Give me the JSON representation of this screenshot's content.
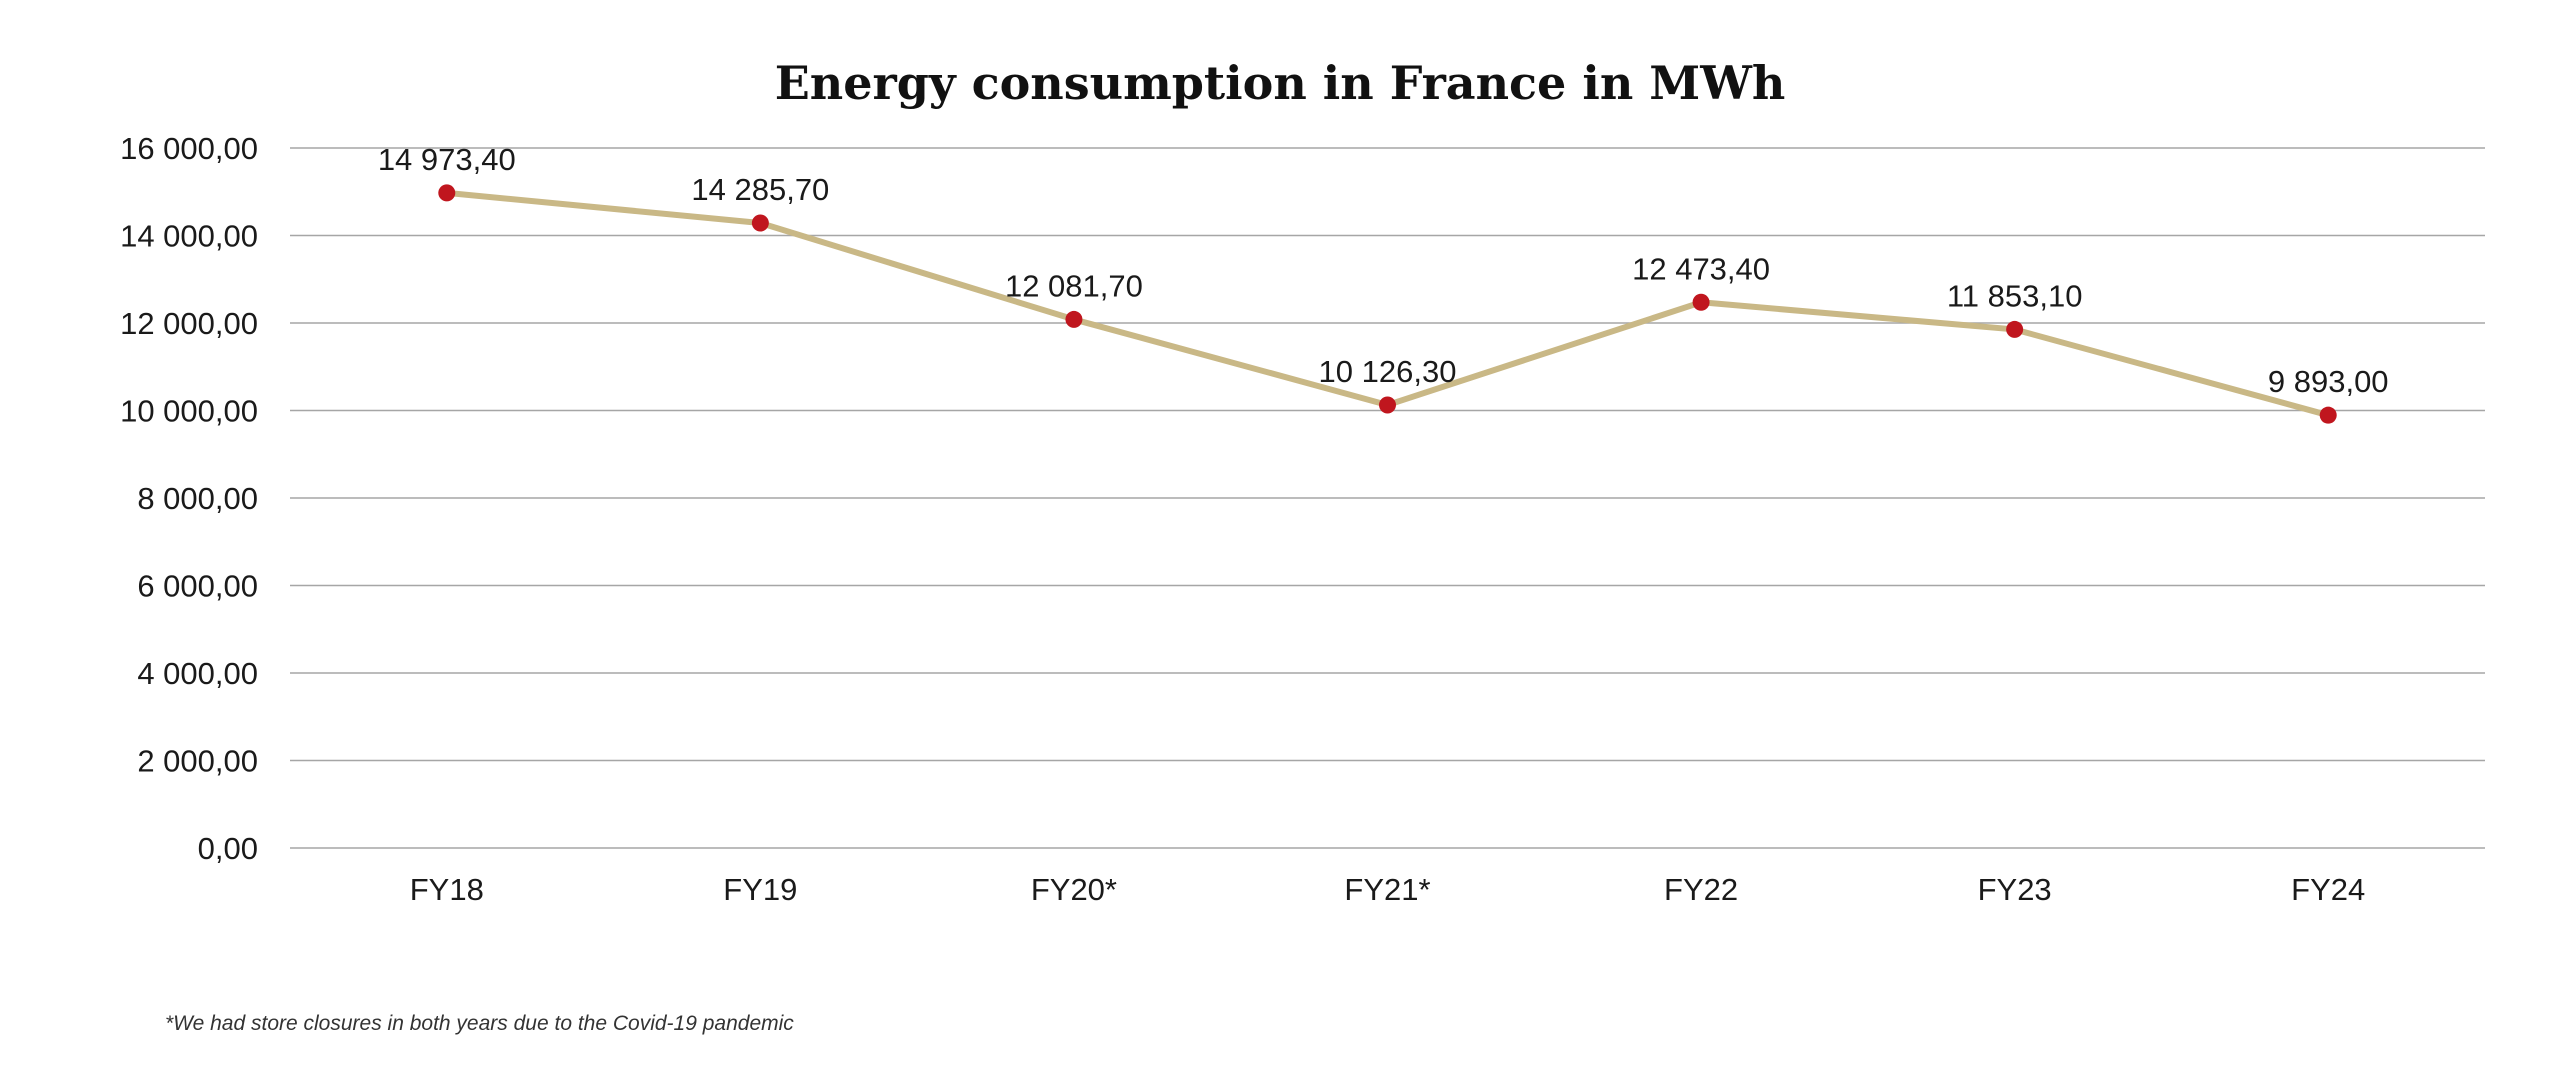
{
  "chart_data": {
    "type": "line",
    "title": "Energy consumption in France in MWh",
    "categories": [
      "FY18",
      "FY19",
      "FY20*",
      "FY21*",
      "FY22",
      "FY23",
      "FY24"
    ],
    "series": [
      {
        "values": [
          14973.4,
          14285.7,
          12081.7,
          10126.3,
          12473.4,
          11853.1,
          9893.0
        ],
        "data_labels": [
          "14 973,40",
          "14 285,70",
          "12 081,70",
          "10 126,30",
          "12 473,40",
          "11 853,10",
          "9 893,00"
        ]
      }
    ],
    "ylim": [
      0,
      16000
    ],
    "yticks": [
      0,
      2000,
      4000,
      6000,
      8000,
      10000,
      12000,
      14000,
      16000
    ],
    "ytick_labels": [
      "0,00",
      "2 000,00",
      "4 000,00",
      "6 000,00",
      "8 000,00",
      "10 000,00",
      "12 000,00",
      "14 000,00",
      "16 000,00"
    ],
    "xlabel": "",
    "ylabel": "",
    "grid": true,
    "legend": "none",
    "colors": {
      "line": "#c9b886",
      "marker": "#c0161e",
      "grid": "#a6a6a6",
      "text": "#1a1a1a"
    }
  },
  "footnote": "*We had store closures in both years due to the Covid-19 pandemic"
}
